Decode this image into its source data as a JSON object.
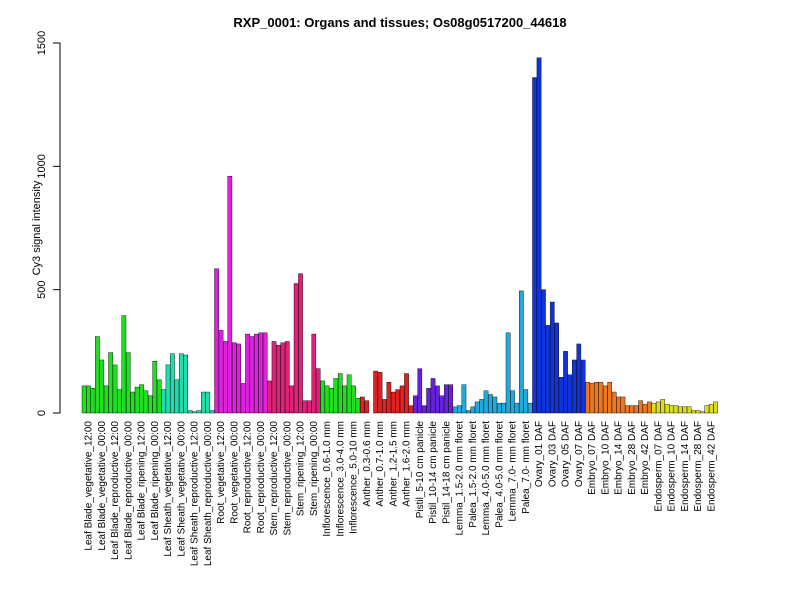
{
  "chart_data": {
    "type": "bar",
    "title": "RXP_0001: Organs and tissues; Os08g0517200_44618",
    "xlabel": "",
    "ylabel": "Cy3 signal intensity",
    "ylim": [
      0,
      1500
    ],
    "yticks": [
      0,
      500,
      1000,
      1500
    ],
    "grid": false,
    "legend": "none",
    "bar_groups": [
      {
        "label": "Leaf Blade_vegetative_12:00",
        "color": "#22dd22",
        "values": [
          110,
          110,
          100
        ]
      },
      {
        "label": "Leaf Blade_vegetative_00:00",
        "color": "#22dd22",
        "values": [
          310,
          215,
          110
        ]
      },
      {
        "label": "Leaf Blade_reproductive_12:00",
        "color": "#22dd22",
        "values": [
          245,
          195,
          95
        ]
      },
      {
        "label": "Leaf Blade_reproductive_00:00",
        "color": "#22dd22",
        "values": [
          395,
          245,
          85
        ]
      },
      {
        "label": "Leaf Blade_ripening_12:00",
        "color": "#22dd22",
        "values": [
          105,
          115,
          90
        ]
      },
      {
        "label": "Leaf Blade_ripening_00:00",
        "color": "#22dd22",
        "values": [
          70,
          210,
          135
        ]
      },
      {
        "label": "Leaf Sheath_vegetative_12:00",
        "color": "#22ddaa",
        "values": [
          95,
          195,
          240
        ]
      },
      {
        "label": "Leaf Sheath_vegetative_00:00",
        "color": "#22ddaa",
        "values": [
          135,
          240,
          235
        ]
      },
      {
        "label": "Leaf Sheath_reproductive_12:00",
        "color": "#22ddaa",
        "values": [
          10,
          5,
          10
        ]
      },
      {
        "label": "Leaf Sheath_reproductive_00:00",
        "color": "#22ddaa",
        "values": [
          85,
          85,
          10
        ]
      },
      {
        "label": "Root_vegetative_12:00",
        "color": "#dd22dd",
        "values": [
          585,
          335,
          290
        ]
      },
      {
        "label": "Root_vegetative_00:00",
        "color": "#dd22dd",
        "values": [
          960,
          285,
          280
        ]
      },
      {
        "label": "Root_reproductive_12:00",
        "color": "#dd22dd",
        "values": [
          120,
          320,
          310
        ]
      },
      {
        "label": "Root_reproductive_00:00",
        "color": "#dd22dd",
        "values": [
          320,
          325,
          325
        ]
      },
      {
        "label": "Stem_reproductive_12:00",
        "color": "#dd2277",
        "values": [
          130,
          290,
          275
        ]
      },
      {
        "label": "Stem_reproductive_00:00",
        "color": "#dd2277",
        "values": [
          285,
          290,
          110
        ]
      },
      {
        "label": "Stem_ripening_12:00",
        "color": "#dd2277",
        "values": [
          525,
          565,
          50
        ]
      },
      {
        "label": "Stem_ripening_00:00",
        "color": "#dd2277",
        "values": [
          50,
          320,
          180
        ]
      },
      {
        "label": "Inflorescence_0.6-1.0 mm",
        "color": "#22dd22",
        "values": [
          130,
          110,
          100
        ]
      },
      {
        "label": "Inflorescence_3.0-4.0 mm",
        "color": "#22dd22",
        "values": [
          140,
          160,
          110
        ]
      },
      {
        "label": "Inflorescence_5.0-10 mm",
        "color": "#22dd22",
        "values": [
          155,
          110,
          60
        ]
      },
      {
        "label": "Anther_0.3-0.6 mm",
        "color": "#dd2222",
        "values": [
          65,
          50,
          0
        ]
      },
      {
        "label": "Anther_0.7-1.0 mm",
        "color": "#dd2222",
        "values": [
          170,
          165,
          55
        ]
      },
      {
        "label": "Anther_1.2-1.5 mm",
        "color": "#dd2222",
        "values": [
          125,
          85,
          95
        ]
      },
      {
        "label": "Anther_1.6-2.0 mm",
        "color": "#dd2222",
        "values": [
          110,
          160,
          30
        ]
      },
      {
        "label": "Pistil_5-10 cm panicle",
        "color": "#6622dd",
        "values": [
          70,
          180,
          30
        ]
      },
      {
        "label": "Pistil_10-14 cm panicle",
        "color": "#6622dd",
        "values": [
          100,
          140,
          110
        ]
      },
      {
        "label": "Pistil_14-18 cm panicle",
        "color": "#6622dd",
        "values": [
          70,
          115,
          115
        ]
      },
      {
        "label": "Lemma_1.5-2.0 mm floret",
        "color": "#22aadd",
        "values": [
          25,
          30,
          115
        ]
      },
      {
        "label": "Palea_1.5-2.0 mm floret",
        "color": "#22aadd",
        "values": [
          10,
          25,
          45
        ]
      },
      {
        "label": "Lemma_4.0-5.0 mm floret",
        "color": "#22aadd",
        "values": [
          55,
          90,
          75
        ]
      },
      {
        "label": "Palea_4.0-5.0 mm floret",
        "color": "#22aadd",
        "values": [
          65,
          40,
          40
        ]
      },
      {
        "label": "Lemma_7.0- mm floret",
        "color": "#22aadd",
        "values": [
          325,
          90,
          40
        ]
      },
      {
        "label": "Palea_7.0- mm floret",
        "color": "#22aadd",
        "values": [
          495,
          95,
          40
        ]
      },
      {
        "label": "Ovary_01 DAF",
        "color": "#1133dd",
        "values": [
          1360,
          1440,
          500
        ]
      },
      {
        "label": "Ovary_03 DAF",
        "color": "#1133dd",
        "values": [
          355,
          450,
          365
        ]
      },
      {
        "label": "Ovary_05 DAF",
        "color": "#1133dd",
        "values": [
          145,
          250,
          155
        ]
      },
      {
        "label": "Ovary_07 DAF",
        "color": "#1133dd",
        "values": [
          215,
          280,
          215
        ]
      },
      {
        "label": "Embryo_07 DAF",
        "color": "#ee7722",
        "values": [
          125,
          120,
          125
        ]
      },
      {
        "label": "Embryo_10 DAF",
        "color": "#ee7722",
        "values": [
          125,
          110,
          125
        ]
      },
      {
        "label": "Embryo_14 DAF",
        "color": "#ee7722",
        "values": [
          85,
          65,
          65
        ]
      },
      {
        "label": "Embryo_28 DAF",
        "color": "#ee7722",
        "values": [
          30,
          30,
          30
        ]
      },
      {
        "label": "Embryo_42 DAF",
        "color": "#ee7722",
        "values": [
          50,
          35,
          45
        ]
      },
      {
        "label": "Endosperm_07 DAF",
        "color": "#dddd22",
        "values": [
          40,
          45,
          55
        ]
      },
      {
        "label": "Endosperm_10 DAF",
        "color": "#dddd22",
        "values": [
          35,
          30,
          30
        ]
      },
      {
        "label": "Endosperm_14 DAF",
        "color": "#dddd22",
        "values": [
          25,
          25,
          25
        ]
      },
      {
        "label": "Endosperm_28 DAF",
        "color": "#dddd22",
        "values": [
          10,
          10,
          5
        ]
      },
      {
        "label": "Endosperm_42 DAF",
        "color": "#dddd22",
        "values": [
          30,
          35,
          45
        ]
      }
    ]
  }
}
